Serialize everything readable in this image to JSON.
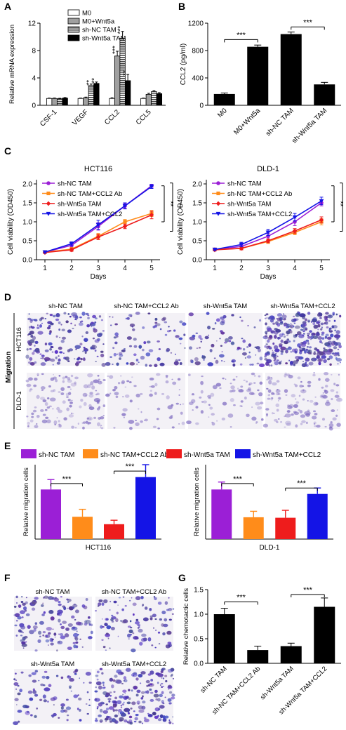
{
  "panel_letters": [
    "A",
    "B",
    "C",
    "D",
    "E",
    "F",
    "G"
  ],
  "colors": {
    "purple": "#9b1fd6",
    "orange": "#ff8c1a",
    "red": "#ee1c1c",
    "blue": "#1414e6",
    "black": "#000000",
    "gray": "#8c8c8c",
    "stain": "#5a4ba8"
  },
  "chart_data": [
    {
      "id": "A",
      "type": "bar",
      "ylabel": "Relative mRNA expression",
      "ylim": [
        0,
        12
      ],
      "yticks": [
        0,
        4,
        8,
        12
      ],
      "categories": [
        "CSF-1",
        "VEGF",
        "CCL2",
        "CCL5"
      ],
      "series": [
        {
          "name": "M0",
          "values": [
            1.0,
            1.0,
            1.0,
            1.0
          ],
          "errors": [
            0.05,
            0.05,
            0.1,
            0.05
          ]
        },
        {
          "name": "M0+Wnt5a",
          "values": [
            1.0,
            1.1,
            7.2,
            1.6
          ],
          "errors": [
            0.06,
            0.1,
            0.7,
            0.15
          ]
        },
        {
          "name": "sh-NC TAM",
          "values": [
            0.95,
            2.9,
            9.8,
            2.0
          ],
          "errors": [
            0.07,
            0.2,
            1.0,
            0.15
          ]
        },
        {
          "name": "sh-Wnt5a TAM",
          "values": [
            1.05,
            3.2,
            3.6,
            1.7
          ],
          "errors": [
            0.08,
            0.2,
            0.9,
            0.15
          ]
        }
      ],
      "annotations": [
        {
          "category": "VEGF",
          "series": "sh-NC TAM",
          "text": "**"
        },
        {
          "category": "VEGF",
          "series": "sh-Wnt5a TAM",
          "text": "**"
        },
        {
          "category": "CCL2",
          "series": "M0+Wnt5a",
          "text": "***"
        },
        {
          "category": "CCL2",
          "series": "sh-NC TAM",
          "text": "***"
        },
        {
          "category": "CCL2",
          "series": "sh-Wnt5a TAM",
          "text": "**"
        }
      ]
    },
    {
      "id": "B",
      "type": "bar",
      "ylabel": "CCL2 (pg/ml)",
      "ylim": [
        0,
        1200
      ],
      "yticks": [
        0,
        400,
        800,
        1200
      ],
      "categories": [
        "M0",
        "M0+Wnt5a",
        "sh-NC TAM",
        "sh-Wnt5a TAM"
      ],
      "values": [
        165,
        855,
        1040,
        305
      ],
      "errors": [
        15,
        25,
        30,
        30
      ],
      "brackets": [
        {
          "from": 0,
          "to": 1,
          "text": "***",
          "y": 960
        },
        {
          "from": 2,
          "to": 3,
          "text": "***",
          "y": 1145
        }
      ]
    },
    {
      "id": "C1",
      "type": "line",
      "title": "HCT116",
      "xlabel": "Days",
      "ylabel": "Cell viability (OD450)",
      "x": [
        1,
        2,
        3,
        4,
        5
      ],
      "ylim": [
        0,
        2.0
      ],
      "yticks": [
        0,
        0.5,
        1.0,
        1.5,
        2.0
      ],
      "series": [
        {
          "name": "sh-NC TAM",
          "color": "purple",
          "marker": "circle",
          "values": [
            0.2,
            0.38,
            0.88,
            1.42,
            1.95
          ],
          "errors": [
            0.02,
            0.05,
            0.1,
            0.06,
            0.04
          ]
        },
        {
          "name": "sh-NC TAM+CCL2 Ab",
          "color": "orange",
          "marker": "square",
          "values": [
            0.2,
            0.28,
            0.62,
            1.0,
            1.22
          ],
          "errors": [
            0.02,
            0.04,
            0.07,
            0.06,
            0.08
          ]
        },
        {
          "name": "sh-Wnt5a TAM",
          "color": "red",
          "marker": "diamond",
          "values": [
            0.19,
            0.26,
            0.6,
            0.88,
            1.18
          ],
          "errors": [
            0.02,
            0.04,
            0.07,
            0.06,
            0.1
          ]
        },
        {
          "name": "sh-Wnt5a TAM+CCL2",
          "color": "blue",
          "marker": "triangle",
          "values": [
            0.2,
            0.42,
            0.92,
            1.42,
            1.93
          ],
          "errors": [
            0.02,
            0.05,
            0.12,
            0.08,
            0.05
          ]
        }
      ],
      "sig": [
        "**",
        "**"
      ]
    },
    {
      "id": "C2",
      "type": "line",
      "title": "DLD-1",
      "xlabel": "Days",
      "ylabel": "Cell viability (OD450)",
      "x": [
        1,
        2,
        3,
        4,
        5
      ],
      "ylim": [
        0,
        2.0
      ],
      "yticks": [
        0,
        0.5,
        1.0,
        1.5,
        2.0
      ],
      "series": [
        {
          "name": "sh-NC TAM",
          "color": "purple",
          "marker": "circle",
          "values": [
            0.27,
            0.35,
            0.62,
            1.0,
            1.5
          ],
          "errors": [
            0.03,
            0.05,
            0.07,
            0.1,
            0.08
          ]
        },
        {
          "name": "sh-NC TAM+CCL2 Ab",
          "color": "orange",
          "marker": "square",
          "values": [
            0.27,
            0.3,
            0.48,
            0.72,
            1.0
          ],
          "errors": [
            0.03,
            0.04,
            0.05,
            0.06,
            0.08
          ]
        },
        {
          "name": "sh-Wnt5a TAM",
          "color": "red",
          "marker": "diamond",
          "values": [
            0.26,
            0.3,
            0.5,
            0.76,
            1.05
          ],
          "errors": [
            0.03,
            0.04,
            0.05,
            0.06,
            0.08
          ]
        },
        {
          "name": "sh-Wnt5a TAM+CCL2",
          "color": "blue",
          "marker": "triangle",
          "values": [
            0.27,
            0.4,
            0.72,
            1.12,
            1.55
          ],
          "errors": [
            0.03,
            0.06,
            0.08,
            0.1,
            0.1
          ]
        }
      ],
      "sig": [
        "**",
        "**"
      ]
    },
    {
      "id": "E1",
      "type": "bar",
      "xlabel": "HCT116",
      "ylabel": "Relative migration cells",
      "ylim": [
        0,
        1.5
      ],
      "categories": [
        "sh-NC TAM",
        "sh-NC TAM+CCL2 Ab",
        "sh-Wnt5a TAM",
        "sh-Wnt5a TAM+CCL2"
      ],
      "values": [
        1.0,
        0.45,
        0.3,
        1.25
      ],
      "errors": [
        0.2,
        0.15,
        0.08,
        0.25
      ],
      "colors": [
        "purple",
        "orange",
        "red",
        "blue"
      ],
      "brackets": [
        {
          "from": 0,
          "to": 1,
          "text": "***",
          "y": 1.12
        },
        {
          "from": 2,
          "to": 3,
          "text": "***",
          "y": 1.37
        }
      ]
    },
    {
      "id": "E2",
      "type": "bar",
      "xlabel": "DLD-1",
      "ylabel": "Relative migration cells",
      "ylim": [
        0,
        1.5
      ],
      "categories": [
        "sh-NC TAM",
        "sh-NC TAM+CCL2 Ab",
        "sh-Wnt5a TAM",
        "sh-Wnt5a TAM+CCL2"
      ],
      "values": [
        1.0,
        0.44,
        0.43,
        0.91
      ],
      "errors": [
        0.15,
        0.12,
        0.15,
        0.12
      ],
      "colors": [
        "purple",
        "orange",
        "red",
        "blue"
      ],
      "brackets": [
        {
          "from": 0,
          "to": 1,
          "text": "***",
          "y": 1.12
        },
        {
          "from": 2,
          "to": 3,
          "text": "***",
          "y": 1.03
        }
      ]
    },
    {
      "id": "G",
      "type": "bar",
      "ylabel": "Relative chemotactic cells",
      "ylim": [
        0,
        1.5
      ],
      "yticks": [
        0.0,
        0.5,
        1.0,
        1.5
      ],
      "categories": [
        "sh-NC TAM",
        "sh-NC TAM+CCL2 Ab",
        "sh-Wnt5a TAM",
        "sh-Wnt5a TAM+CCL2"
      ],
      "values": [
        1.0,
        0.27,
        0.35,
        1.15
      ],
      "errors": [
        0.12,
        0.08,
        0.06,
        0.18
      ],
      "brackets": [
        {
          "from": 0,
          "to": 1,
          "text": "***",
          "y": 1.25
        },
        {
          "from": 2,
          "to": 3,
          "text": "***",
          "y": 1.4
        }
      ]
    }
  ],
  "legend_A": [
    "M0",
    "M0+Wnt5a",
    "sh-NC TAM",
    "sh-Wnt5a TAM"
  ],
  "legend_E": [
    "sh-NC TAM",
    "sh-NC TAM+CCL2 Ab",
    "sh-Wnt5a TAM",
    "sh-Wnt5a TAM+CCL2"
  ],
  "panel_D": {
    "columns": [
      "sh-NC TAM",
      "sh-NC TAM+CCL2 Ab",
      "sh-Wnt5a TAM",
      "sh-Wnt5a TAM+CCL2"
    ],
    "rows": [
      "HCT116",
      "DLD-1"
    ],
    "side_label": "Migration"
  },
  "panel_F": {
    "labels": [
      "sh-NC TAM",
      "sh-NC TAM+CCL2 Ab",
      "sh-Wnt5a TAM",
      "sh-Wnt5a TAM+CCL2"
    ]
  }
}
